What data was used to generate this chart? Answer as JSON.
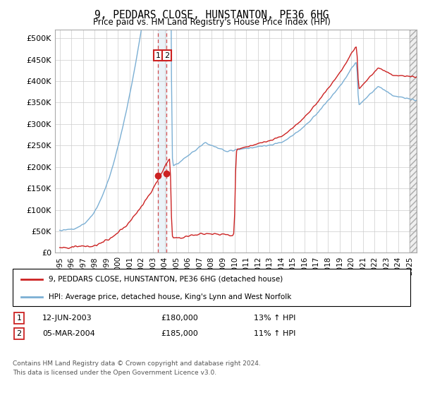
{
  "title": "9, PEDDARS CLOSE, HUNSTANTON, PE36 6HG",
  "subtitle": "Price paid vs. HM Land Registry's House Price Index (HPI)",
  "hpi_color": "#7bafd4",
  "price_color": "#cc2222",
  "sale1_date_label": "12-JUN-2003",
  "sale1_price": 180000,
  "sale1_hpi_pct": "13%",
  "sale2_date_label": "05-MAR-2004",
  "sale2_price": 185000,
  "sale2_hpi_pct": "11%",
  "sale1_x": 2003.44,
  "sale2_x": 2004.17,
  "legend_label1": "9, PEDDARS CLOSE, HUNSTANTON, PE36 6HG (detached house)",
  "legend_label2": "HPI: Average price, detached house, King's Lynn and West Norfolk",
  "footer1": "Contains HM Land Registry data © Crown copyright and database right 2024.",
  "footer2": "This data is licensed under the Open Government Licence v3.0.",
  "background_color": "#ffffff",
  "grid_color": "#cccccc",
  "yticks": [
    0,
    50000,
    100000,
    150000,
    200000,
    250000,
    300000,
    350000,
    400000,
    450000,
    500000
  ],
  "ytick_labels": [
    "£0",
    "£50K",
    "£100K",
    "£150K",
    "£200K",
    "£250K",
    "£300K",
    "£350K",
    "£400K",
    "£450K",
    "£500K"
  ],
  "xstart": 1995,
  "xend": 2025
}
